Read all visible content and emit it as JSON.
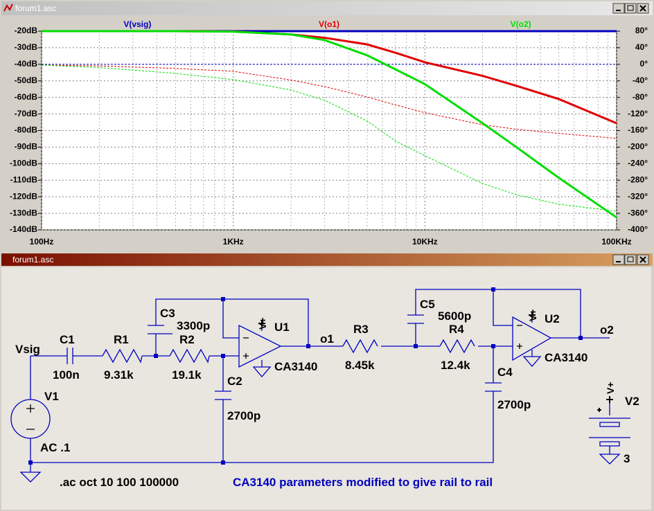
{
  "plot_window": {
    "title": "forum1.asc",
    "chart": {
      "type": "line",
      "xscale": "log",
      "grid": true,
      "x": [
        100,
        200,
        500,
        1000,
        2000,
        3000,
        5000,
        7000,
        10000,
        20000,
        30000,
        50000,
        100000
      ],
      "xlim": [
        100,
        100000
      ],
      "xticks": [
        {
          "value": 100,
          "label": "100Hz"
        },
        {
          "value": 1000,
          "label": "1KHz"
        },
        {
          "value": 10000,
          "label": "10KHz"
        },
        {
          "value": 100000,
          "label": "100KHz"
        }
      ],
      "ylim": [
        -140,
        -20
      ],
      "yticks": [
        {
          "value": -20,
          "label": "-20dB"
        },
        {
          "value": -30,
          "label": "-30dB"
        },
        {
          "value": -40,
          "label": "-40dB"
        },
        {
          "value": -50,
          "label": "-50dB"
        },
        {
          "value": -60,
          "label": "-60dB"
        },
        {
          "value": -70,
          "label": "-70dB"
        },
        {
          "value": -80,
          "label": "-80dB"
        },
        {
          "value": -90,
          "label": "-90dB"
        },
        {
          "value": -100,
          "label": "-100dB"
        },
        {
          "value": -110,
          "label": "-110dB"
        },
        {
          "value": -120,
          "label": "-120dB"
        },
        {
          "value": -130,
          "label": "-130dB"
        },
        {
          "value": -140,
          "label": "-140dB"
        }
      ],
      "y2lim": [
        -400,
        80
      ],
      "y2ticks": [
        {
          "value": 80,
          "label": "80°"
        },
        {
          "value": 40,
          "label": "40°"
        },
        {
          "value": 0,
          "label": "0°"
        },
        {
          "value": -40,
          "label": "-40°"
        },
        {
          "value": -80,
          "label": "-80°"
        },
        {
          "value": -120,
          "label": "-120°"
        },
        {
          "value": -160,
          "label": "-160°"
        },
        {
          "value": -200,
          "label": "-200°"
        },
        {
          "value": -240,
          "label": "-240°"
        },
        {
          "value": -280,
          "label": "-280°"
        },
        {
          "value": -320,
          "label": "-320°"
        },
        {
          "value": -360,
          "label": "-360°"
        },
        {
          "value": -400,
          "label": "-400°"
        }
      ],
      "series": [
        {
          "name": "V(vsig)",
          "color": "#0000c0",
          "magnitude": [
            -20,
            -20,
            -20,
            -20,
            -20,
            -20,
            -20,
            -20,
            -20,
            -20,
            -20,
            -20,
            -20
          ],
          "phase": [
            0,
            0,
            0,
            0,
            0,
            0,
            0,
            0,
            0,
            0,
            0,
            0,
            0
          ]
        },
        {
          "name": "V(o1)",
          "color": "#e00000",
          "magnitude": [
            -20,
            -20,
            -20,
            -20.2,
            -22,
            -24,
            -28,
            -33,
            -38.8,
            -47,
            -53,
            -61,
            -75.6
          ],
          "phase": [
            -2,
            -4,
            -10,
            -17,
            -38,
            -54,
            -79,
            -98,
            -117,
            -146,
            -157,
            -167,
            -179
          ]
        },
        {
          "name": "V(o2)",
          "color": "#00dd00",
          "magnitude": [
            -20,
            -20,
            -20,
            -20.3,
            -22,
            -25.4,
            -34.6,
            -43,
            -52,
            -75.6,
            -90,
            -108.6,
            -132.5
          ],
          "phase": [
            -2,
            -8,
            -22,
            -37,
            -62,
            -87,
            -137,
            -185,
            -221,
            -288,
            -315,
            -338,
            -355
          ]
        }
      ]
    }
  },
  "schematic_window": {
    "title": "forum1.asc",
    "labels": {
      "vsig": "Vsig",
      "c1": "C1",
      "c1_value": "100n",
      "r1": "R1",
      "r1_value": "9.31k",
      "c3": "C3",
      "c3_value": "3300p",
      "r2": "R2",
      "r2_value": "19.1k",
      "c2": "C2",
      "c2_value": "2700p",
      "u1": "U1",
      "u1_model": "CA3140",
      "u1_supply": "V+",
      "o1": "o1",
      "r3": "R3",
      "r3_value": "8.45k",
      "c5": "C5",
      "c5_value": "5600p",
      "r4": "R4",
      "r4_value": "12.4k",
      "c4": "C4",
      "c4_value": "2700p",
      "u2": "U2",
      "u2_model": "CA3140",
      "u2_supply": "V+",
      "o2": "o2",
      "v1": "V1",
      "v1_value": "AC .1",
      "v2": "V2",
      "v2_value": "3",
      "v2_node": "V+",
      "directive": ".ac oct 10 100 100000",
      "comment": "CA3140 parameters modified to give rail to rail"
    }
  }
}
